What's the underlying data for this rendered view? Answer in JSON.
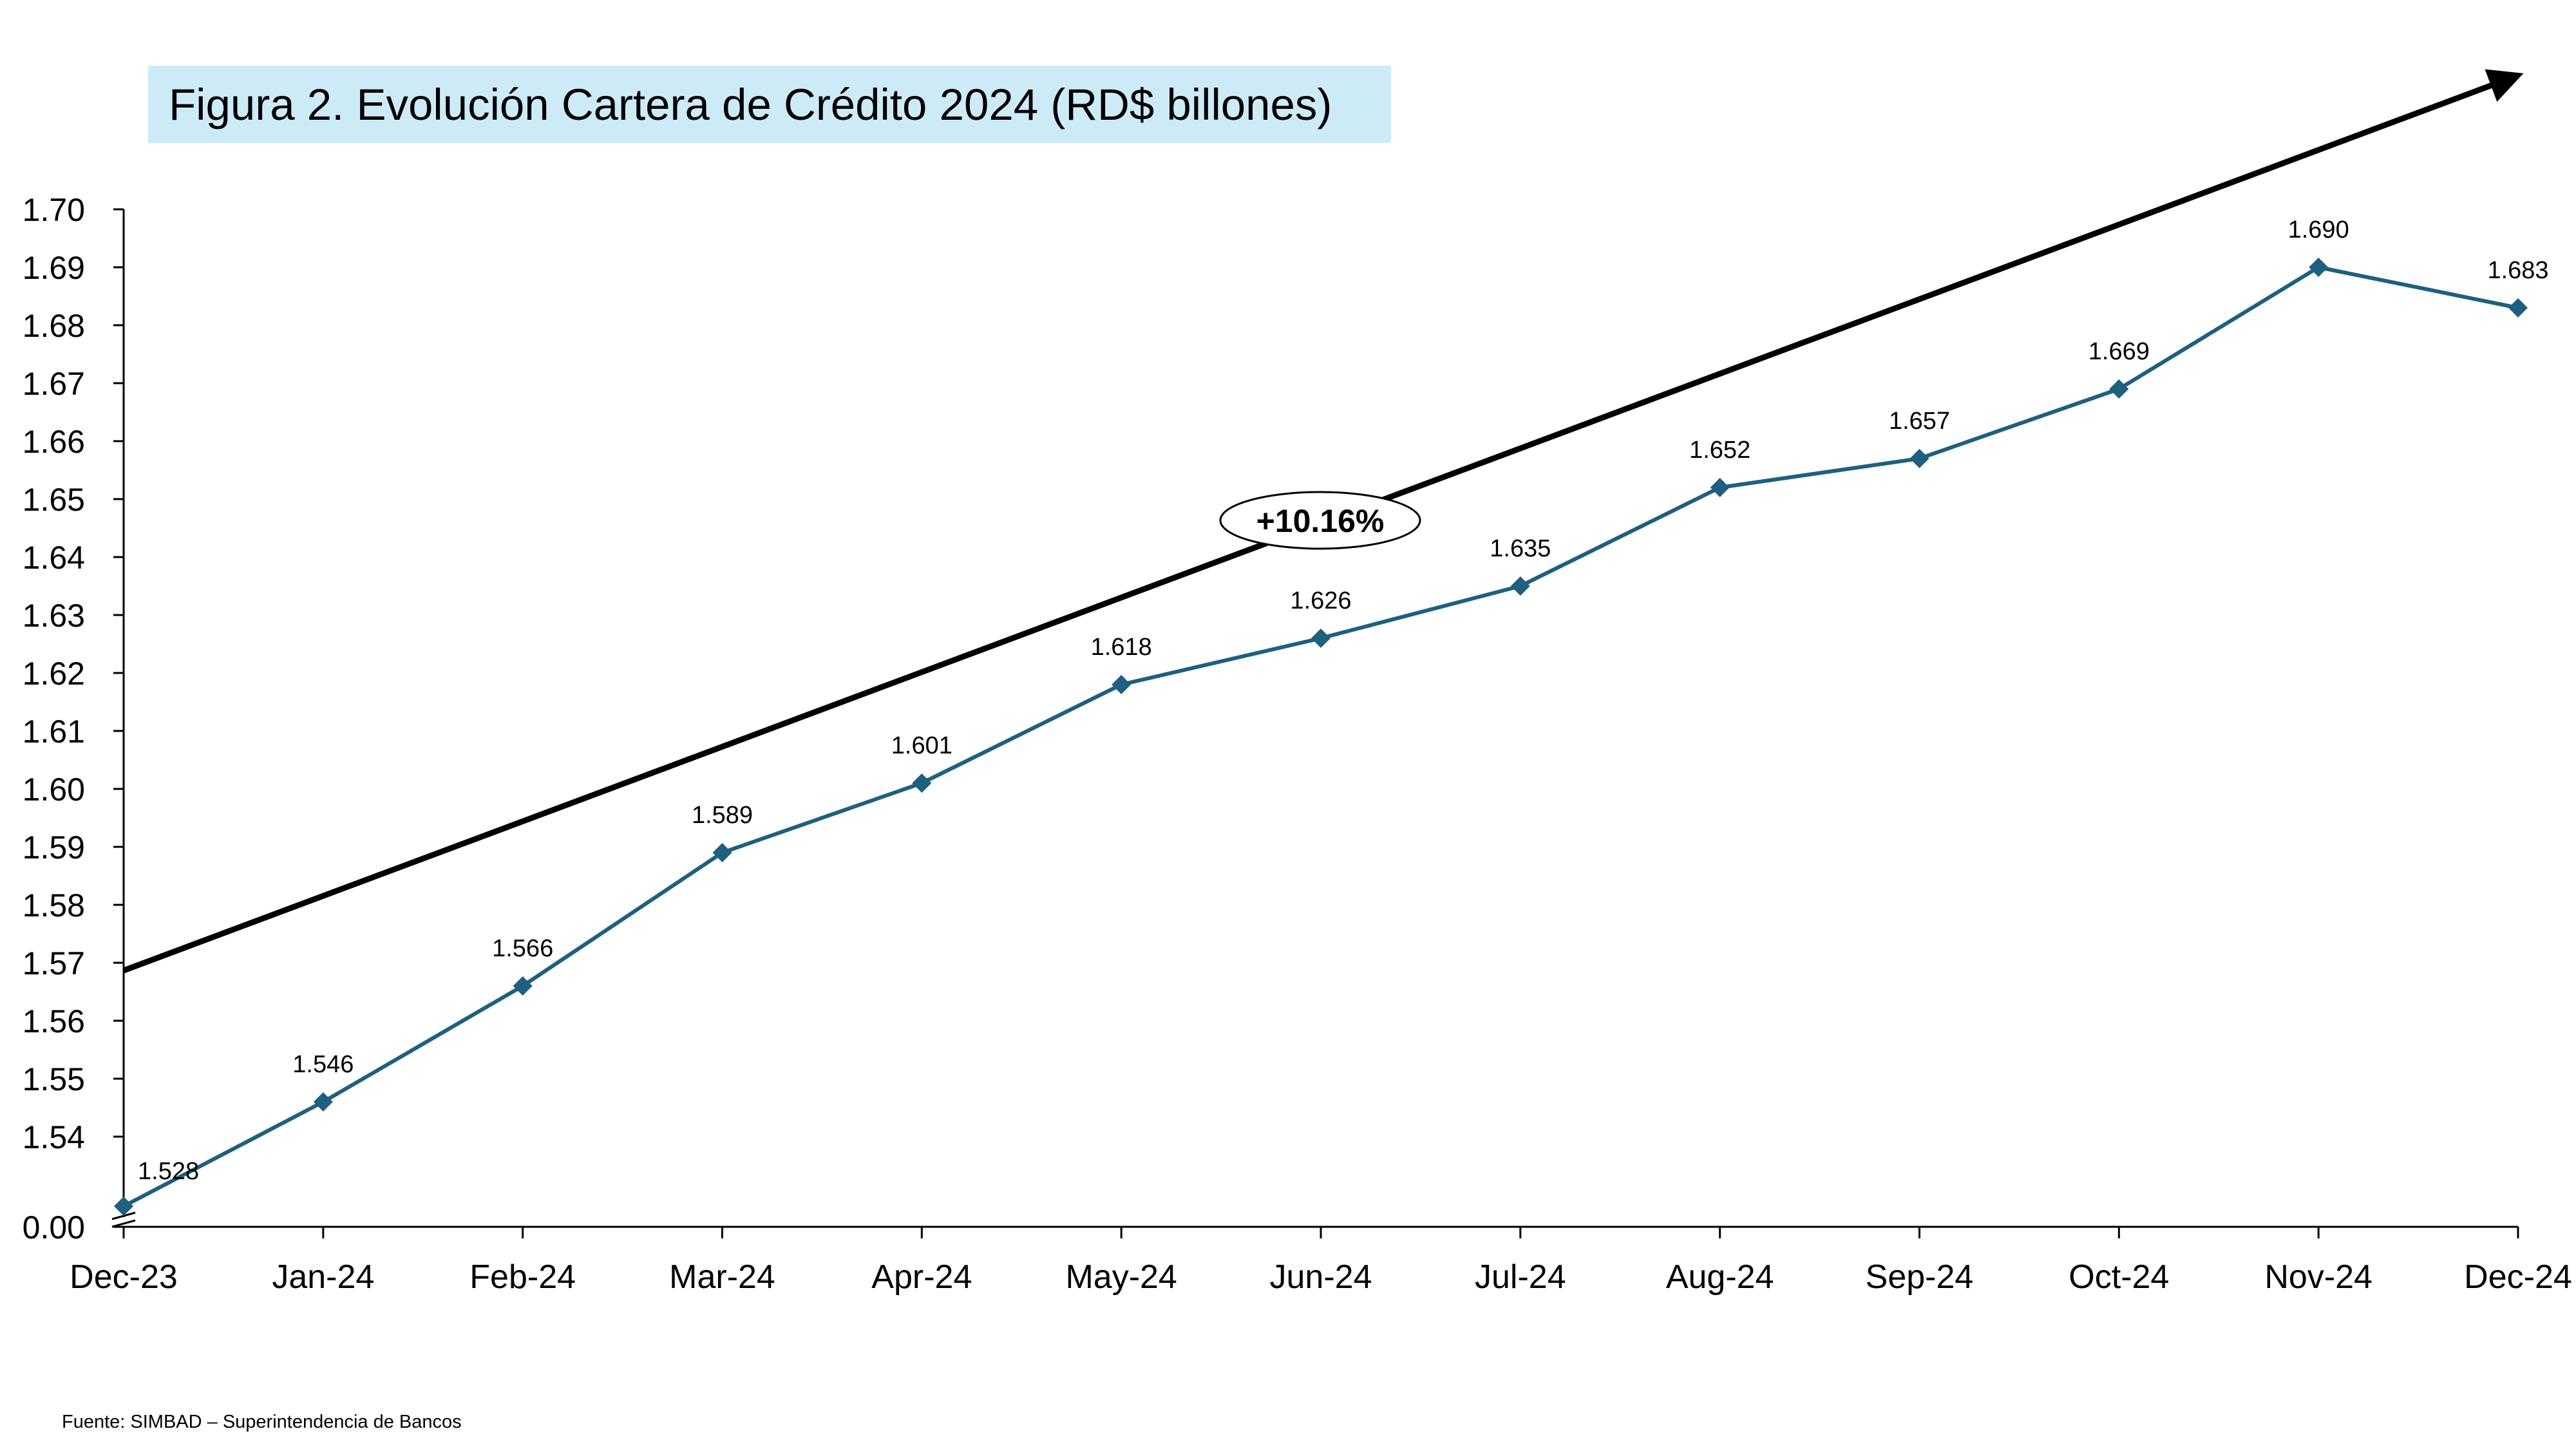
{
  "title": "Figura 2. Evolución Cartera de Crédito 2024 (RD$ billones)",
  "source": "Fuente: SIMBAD – Superintendencia de Bancos",
  "chart_data": {
    "type": "line",
    "title": "Figura 2. Evolución Cartera de Crédito 2024 (RD$ billones)",
    "xlabel": "",
    "ylabel": "",
    "categories": [
      "Dec-23",
      "Jan-24",
      "Feb-24",
      "Mar-24",
      "Apr-24",
      "May-24",
      "Jun-24",
      "Jul-24",
      "Aug-24",
      "Sep-24",
      "Oct-24",
      "Nov-24",
      "Dec-24"
    ],
    "series": [
      {
        "values": [
          1.528,
          1.546,
          1.566,
          1.589,
          1.601,
          1.618,
          1.626,
          1.635,
          1.652,
          1.657,
          1.669,
          1.69,
          1.683
        ],
        "labels": [
          "1.528",
          "1.546",
          "1.566",
          "1.589",
          "1.601",
          "1.618",
          "1.626",
          "1.635",
          "1.652",
          "1.657",
          "1.669",
          "1.690",
          "1.683"
        ]
      }
    ],
    "yticks": [
      1.54,
      1.55,
      1.56,
      1.57,
      1.58,
      1.59,
      1.6,
      1.61,
      1.62,
      1.63,
      1.64,
      1.65,
      1.66,
      1.67,
      1.68,
      1.69,
      1.7
    ],
    "ytick_labels": [
      "1.54",
      "1.55",
      "1.56",
      "1.57",
      "1.58",
      "1.59",
      "1.60",
      "1.61",
      "1.62",
      "1.63",
      "1.64",
      "1.65",
      "1.66",
      "1.67",
      "1.68",
      "1.69",
      "1.70"
    ],
    "ylim": [
      1.53,
      1.7
    ],
    "y_axis_origin_label": "0.00",
    "y_axis_break": true,
    "grid": false,
    "legend": "none",
    "line_color": "#1f5f7f",
    "marker": "diamond",
    "trend_arrow": {
      "label": "+10.16%",
      "color": "#000000"
    }
  }
}
